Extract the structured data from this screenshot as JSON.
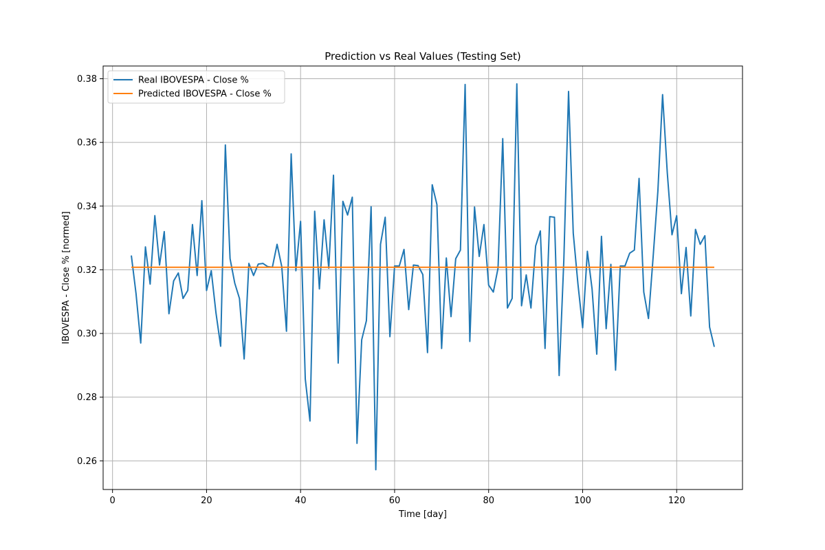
{
  "chart_data": {
    "type": "line",
    "title": "Prediction vs Real Values (Testing Set)",
    "xlabel": "Time [day]",
    "ylabel": "IBOVESPA - Close % [normed]",
    "xlim": [
      -2,
      134
    ],
    "ylim": [
      0.251,
      0.384
    ],
    "xticks": [
      0,
      20,
      40,
      60,
      80,
      100,
      120
    ],
    "yticks": [
      0.26,
      0.28,
      0.3,
      0.32,
      0.34,
      0.36,
      0.38
    ],
    "ytick_decimals": 2,
    "grid": true,
    "legend_position": "top-left",
    "series": [
      {
        "name": "Real IBOVESPA - Close %",
        "color": "#1f77b4",
        "x_start": 4,
        "values": [
          0.3245,
          0.3125,
          0.297,
          0.3272,
          0.3155,
          0.337,
          0.3215,
          0.332,
          0.3062,
          0.3165,
          0.319,
          0.311,
          0.3135,
          0.3342,
          0.3182,
          0.3417,
          0.3135,
          0.3197,
          0.3065,
          0.296,
          0.3592,
          0.3235,
          0.3158,
          0.311,
          0.292,
          0.322,
          0.3182,
          0.3218,
          0.322,
          0.321,
          0.3208,
          0.328,
          0.321,
          0.3007,
          0.3564,
          0.3197,
          0.3352,
          0.2857,
          0.2725,
          0.3384,
          0.314,
          0.3357,
          0.3205,
          0.3497,
          0.2907,
          0.3415,
          0.3372,
          0.3428,
          0.2655,
          0.298,
          0.304,
          0.3398,
          0.2572,
          0.328,
          0.3365,
          0.299,
          0.3212,
          0.3212,
          0.3264,
          0.3075,
          0.3215,
          0.3213,
          0.3185,
          0.294,
          0.3467,
          0.3405,
          0.2953,
          0.3237,
          0.3053,
          0.3235,
          0.3262,
          0.3782,
          0.2975,
          0.3397,
          0.3242,
          0.3342,
          0.3152,
          0.313,
          0.3205,
          0.3612,
          0.308,
          0.311,
          0.3784,
          0.3087,
          0.3184,
          0.308,
          0.3275,
          0.3322,
          0.2953,
          0.3367,
          0.3365,
          0.2868,
          0.3232,
          0.376,
          0.3315,
          0.3155,
          0.3018,
          0.3258,
          0.314,
          0.2935,
          0.3305,
          0.3015,
          0.3217,
          0.2885,
          0.3212,
          0.3212,
          0.3252,
          0.3262,
          0.3487,
          0.313,
          0.3047,
          0.3242,
          0.3447,
          0.375,
          0.3505,
          0.331,
          0.337,
          0.3125,
          0.327,
          0.3055,
          0.3327,
          0.328,
          0.3307,
          0.302,
          0.2958
        ]
      },
      {
        "name": "Predicted IBOVESPA - Close %",
        "color": "#ff7f0e",
        "x": [
          4,
          128
        ],
        "values": [
          0.3208,
          0.3208
        ]
      }
    ]
  }
}
